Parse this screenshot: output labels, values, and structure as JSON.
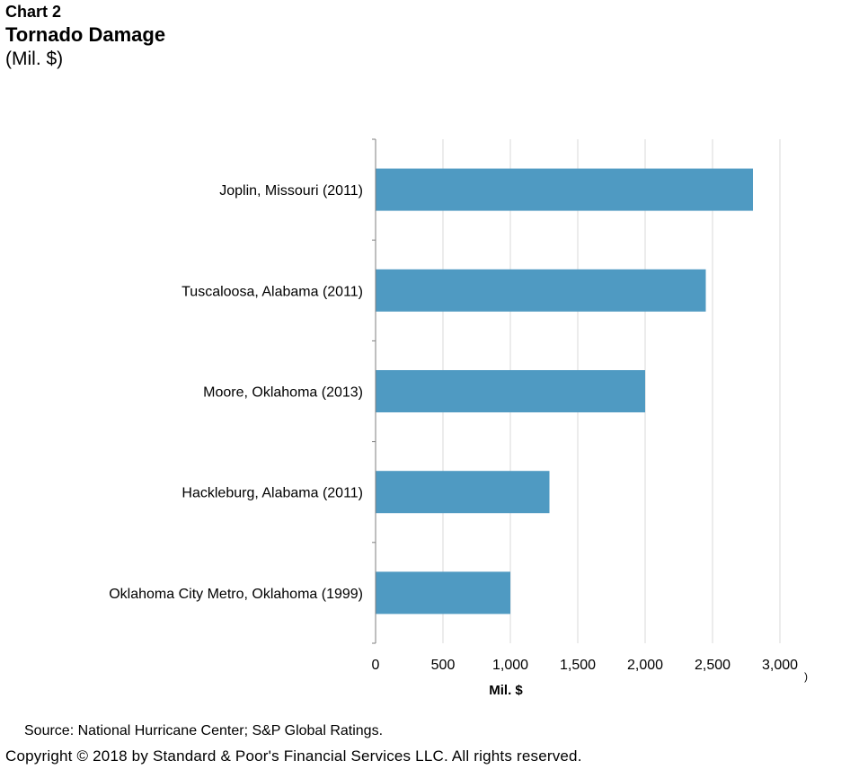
{
  "header": {
    "chart_number": "Chart 2",
    "title": "Tornado Damage",
    "units": "(Mil. $)"
  },
  "chart_data": {
    "type": "bar",
    "orientation": "horizontal",
    "categories": [
      "Joplin, Missouri (2011)",
      "Tuscaloosa, Alabama (2011)",
      "Moore, Oklahoma (2013)",
      "Hackleburg, Alabama (2011)",
      "Oklahoma City Metro, Oklahoma (1999)"
    ],
    "values": [
      2800,
      2450,
      2000,
      1290,
      1000
    ],
    "xlabel": "Mil. $",
    "ylabel": "",
    "xlim": [
      0,
      3000
    ],
    "xticks": [
      0,
      500,
      1000,
      1500,
      2000,
      2500,
      3000
    ],
    "xtick_labels": [
      "0",
      "500",
      "1,000",
      "1,500",
      "2,000",
      "2,500",
      "3,000"
    ],
    "grid": "vertical",
    "legend": "none",
    "bar_color": "#4f9ac2",
    "grid_color": "#d9d9d9",
    "axis_color": "#7f7f7f"
  },
  "footer": {
    "source": "Source: National Hurricane Center; S&P Global Ratings.",
    "copyright": "Copyright © 2018 by Standard & Poor's Financial Services LLC. All rights reserved.",
    "stray_mark": ")"
  }
}
